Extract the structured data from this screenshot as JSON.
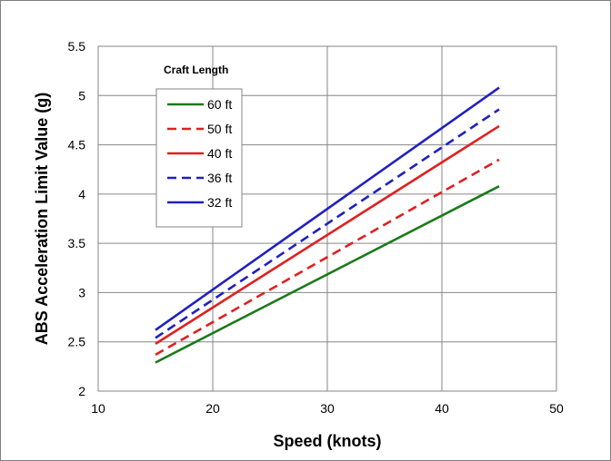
{
  "chart_data": {
    "type": "line",
    "xlabel": "Speed (knots)",
    "ylabel": "ABS Acceleration Limit Value  (g)",
    "xlim": [
      10,
      50
    ],
    "ylim": [
      2,
      5.5
    ],
    "xticks": [
      "10",
      "20",
      "30",
      "40",
      "50"
    ],
    "yticks": [
      "2",
      "2.5",
      "3",
      "3.5",
      "4",
      "4.5",
      "5",
      "5.5"
    ],
    "grid": true,
    "legend": {
      "title": "Craft Length",
      "placement": "top-left"
    },
    "series": [
      {
        "name": "60 ft",
        "color": "#1a7a1a",
        "dash": "solid",
        "x": [
          15,
          45
        ],
        "y": [
          2.29,
          4.08
        ]
      },
      {
        "name": "50 ft",
        "color": "#e02020",
        "dash": "dashed",
        "x": [
          15,
          45
        ],
        "y": [
          2.37,
          4.35
        ]
      },
      {
        "name": "40 ft",
        "color": "#e02020",
        "dash": "solid",
        "x": [
          15,
          45
        ],
        "y": [
          2.48,
          4.69
        ]
      },
      {
        "name": "36 ft",
        "color": "#2020c0",
        "dash": "dashed",
        "x": [
          15,
          45
        ],
        "y": [
          2.54,
          4.86
        ]
      },
      {
        "name": "32 ft",
        "color": "#2020c0",
        "dash": "solid",
        "x": [
          15,
          45
        ],
        "y": [
          2.62,
          5.08
        ]
      }
    ]
  }
}
